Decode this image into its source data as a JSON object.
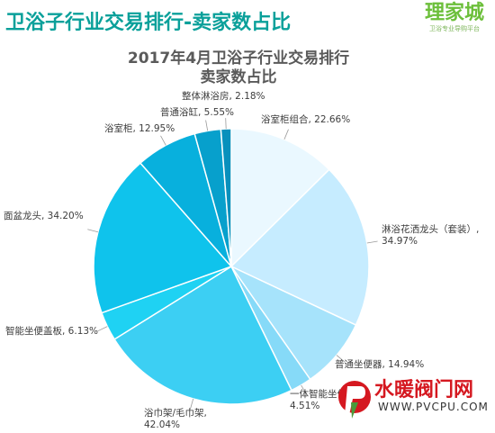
{
  "header": {
    "title": "卫浴子行业交易排行-卖家数占比"
  },
  "brand": {
    "name": "理家城",
    "slogan": "卫浴专业导购平台"
  },
  "watermark": {
    "name": "水暖阀门网",
    "url": "WWW.PVCPU.COM"
  },
  "chart_data": {
    "type": "pie",
    "title_lines": [
      "2017年4月卫浴子行业交易排行",
      "卖家数占比"
    ],
    "slices": [
      {
        "name": "浴室柜组合",
        "label": "浴室柜组合, 22.66%",
        "value": 22.66,
        "color": "#eaf8ff"
      },
      {
        "name": "淋浴花洒龙头（套装）",
        "label": "淋浴花洒龙头（套装）, 34.97%",
        "value": 34.97,
        "color": "#c6ecff"
      },
      {
        "name": "普通坐便器",
        "label": "普通坐便器, 14.94%",
        "value": 14.94,
        "color": "#a6e3fb"
      },
      {
        "name": "一体智能坐便器",
        "label": "一体智能坐便器, 4.51%",
        "value": 4.51,
        "color": "#86daf8"
      },
      {
        "name": "浴巾架/毛巾架",
        "label": "浴巾架/毛巾架, 42.04%",
        "value": 42.04,
        "color": "#3ccff3"
      },
      {
        "name": "智能坐便盖板",
        "label": "智能坐便盖板, 6.13%",
        "value": 6.13,
        "color": "#1fd2f3"
      },
      {
        "name": "面盆龙头",
        "label": "面盆龙头, 34.20%",
        "value": 34.2,
        "color": "#0fc3ec"
      },
      {
        "name": "浴室柜",
        "label": "浴室柜, 12.95%",
        "value": 12.95,
        "color": "#08b0dd"
      },
      {
        "name": "普通浴缸",
        "label": "普通浴缸, 5.55%",
        "value": 5.55,
        "color": "#07a0cc"
      },
      {
        "name": "整体淋浴房",
        "label": "整体淋浴房, 2.18%",
        "value": 2.18,
        "color": "#0790bc"
      }
    ]
  }
}
